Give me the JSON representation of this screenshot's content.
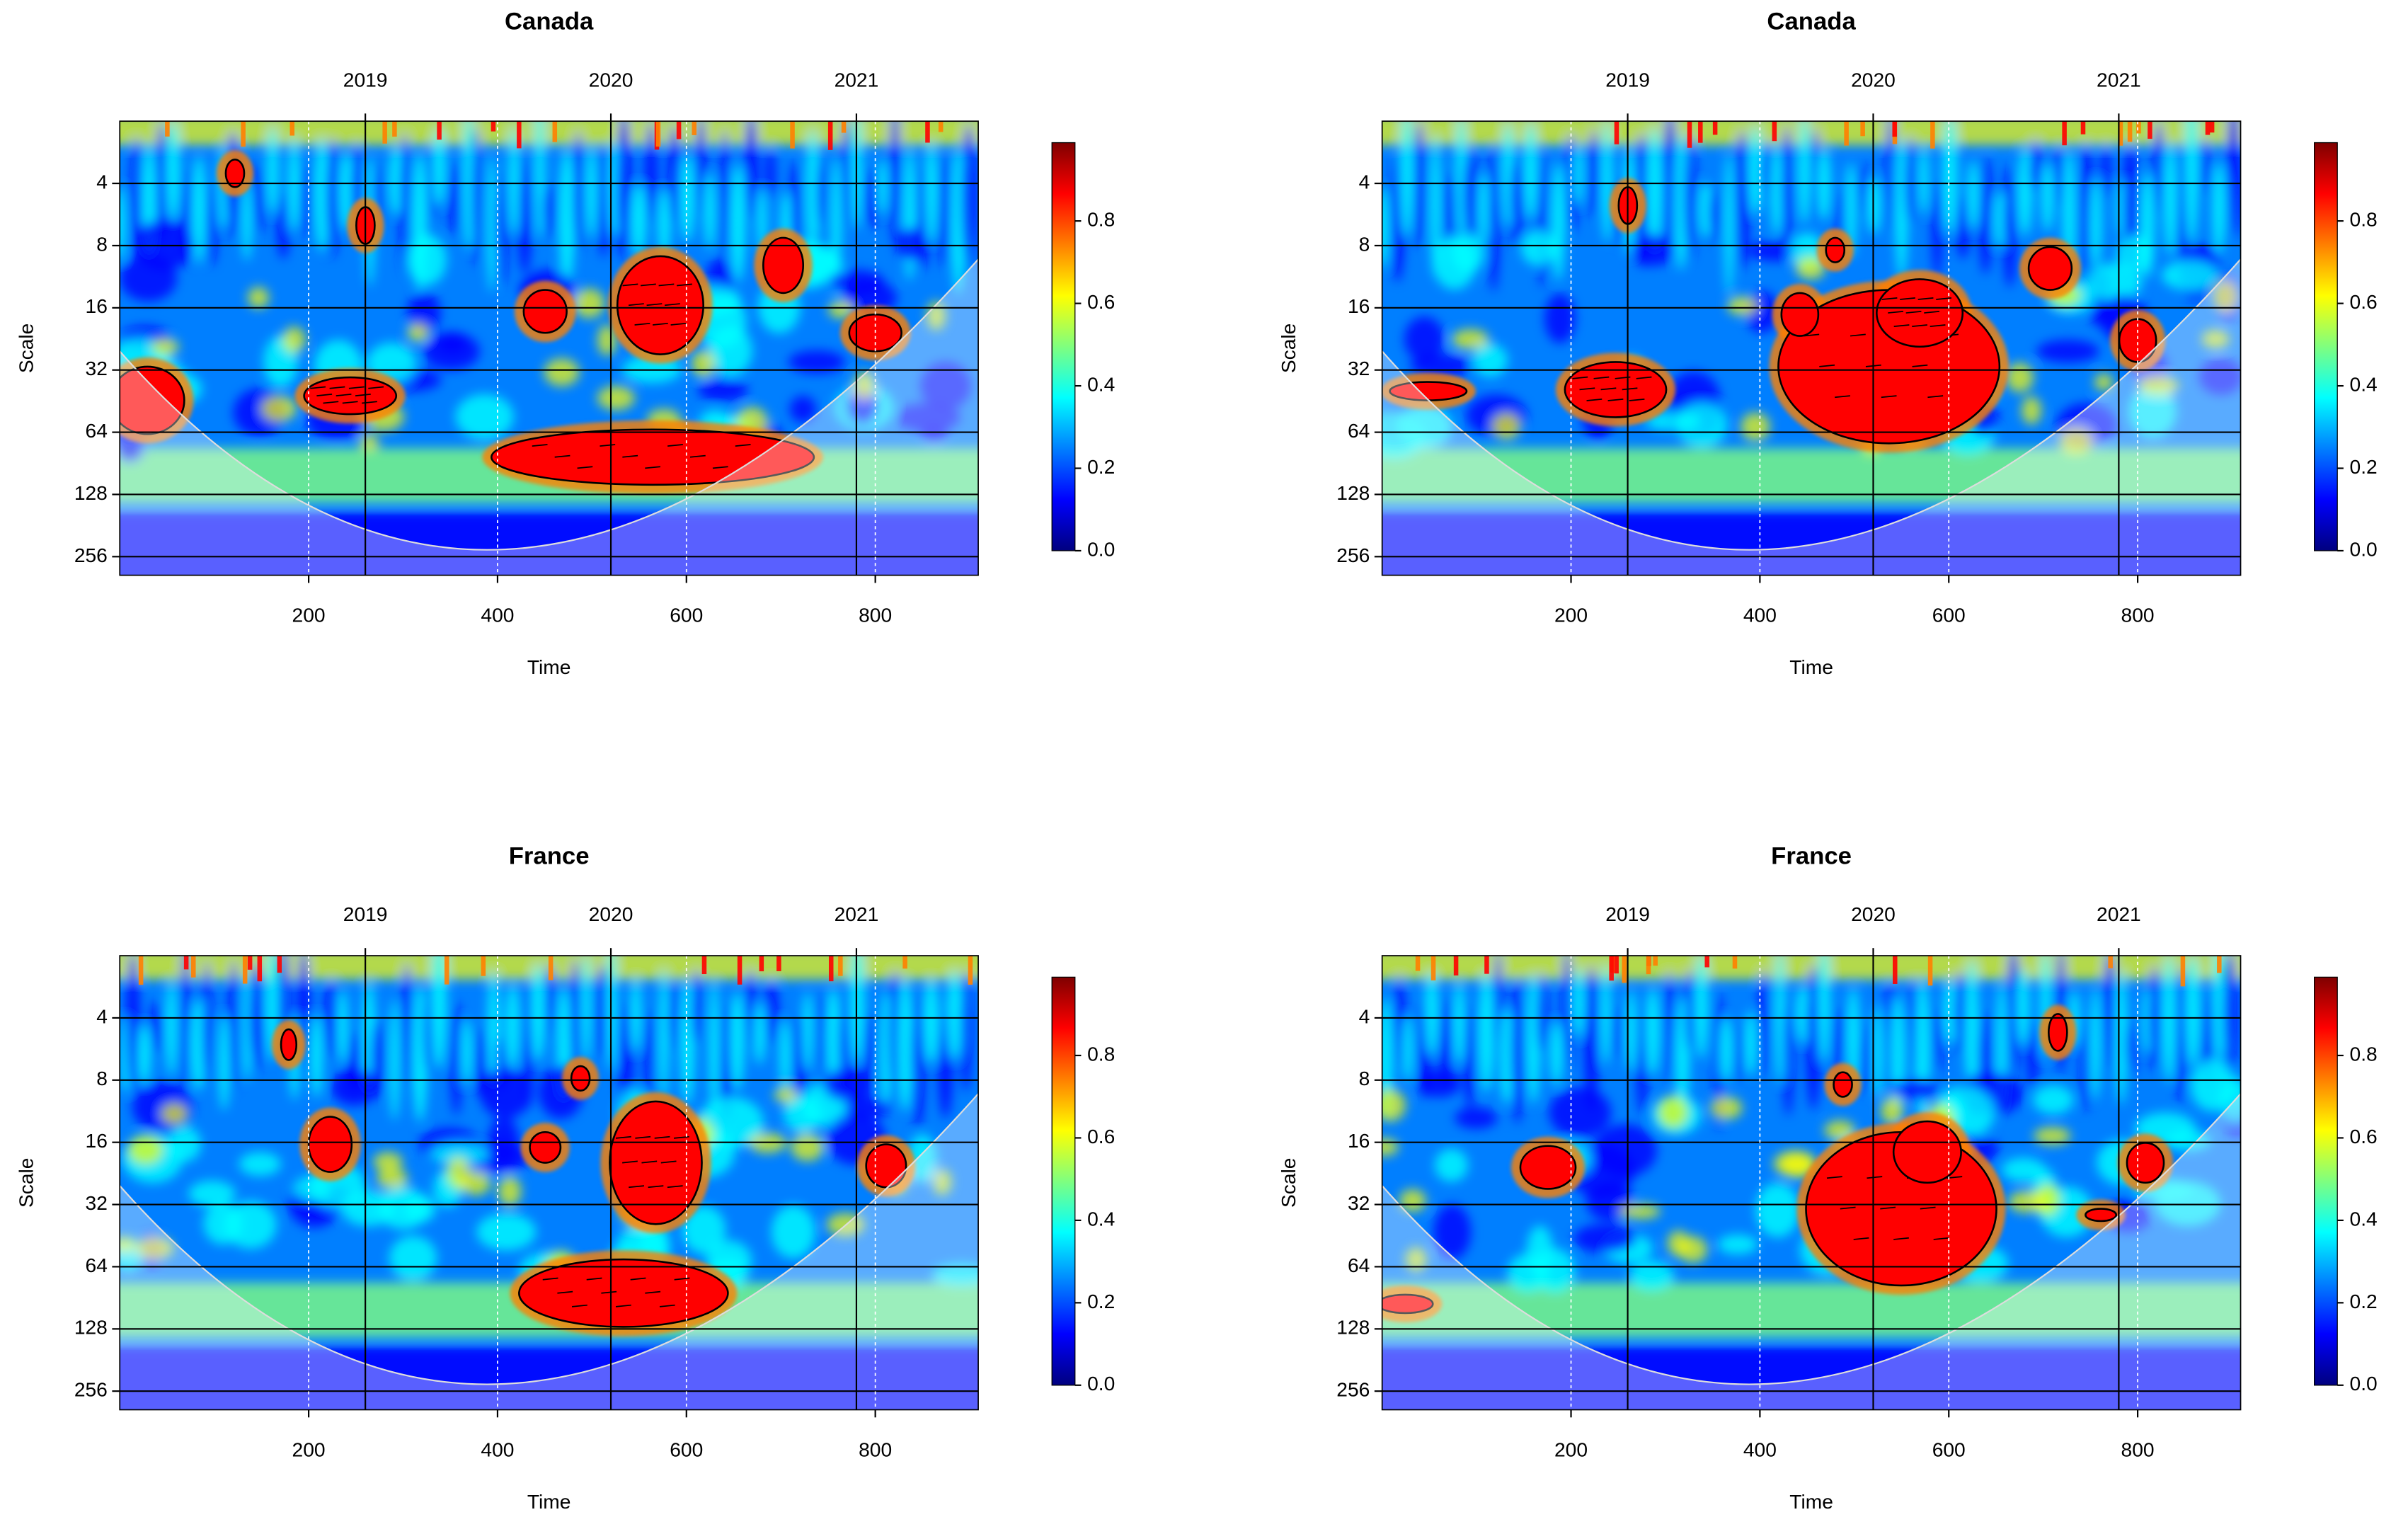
{
  "chart_data": [
    {
      "type": "wavelet",
      "title": "Canada",
      "xlabel": "Time",
      "ylabel": "Scale",
      "xlim": [
        0,
        909
      ],
      "xticks": [
        200,
        400,
        600,
        800
      ],
      "x2ticks": [
        {
          "value": 260,
          "label": "2019"
        },
        {
          "value": 520,
          "label": "2020"
        },
        {
          "value": 780,
          "label": "2021"
        }
      ],
      "ylim": [
        2,
        315
      ],
      "ylog": 2,
      "yticks": [
        4,
        8,
        16,
        32,
        64,
        128,
        256
      ],
      "clim": [
        0,
        0.99
      ],
      "cticks": [
        {
          "value": 0,
          "label": "0.0"
        },
        0.2,
        0.4,
        0.6,
        0.8
      ],
      "colorscale": [
        "#00007f",
        "#0000ff",
        "#007fff",
        "#00ffff",
        "#7fff7f",
        "#ffff00",
        "#ff7f00",
        "#ff0000",
        "#7f0000"
      ],
      "grid": true
    },
    {
      "type": "wavelet",
      "title": "Canada",
      "xlabel": "Time",
      "ylabel": "Scale",
      "xlim": [
        0,
        909
      ],
      "xticks": [
        200,
        400,
        600,
        800
      ],
      "x2ticks": [
        {
          "value": 260,
          "label": "2019"
        },
        {
          "value": 520,
          "label": "2020"
        },
        {
          "value": 780,
          "label": "2021"
        }
      ],
      "ylim": [
        2,
        315
      ],
      "ylog": 2,
      "yticks": [
        4,
        8,
        16,
        32,
        64,
        128,
        256
      ],
      "clim": [
        0,
        0.99
      ],
      "cticks": [
        {
          "value": 0,
          "label": "0.0"
        },
        0.2,
        0.4,
        0.6,
        0.8
      ],
      "colorscale": [
        "#00007f",
        "#0000ff",
        "#007fff",
        "#00ffff",
        "#7fff7f",
        "#ffff00",
        "#ff7f00",
        "#ff0000",
        "#7f0000"
      ],
      "grid": true
    },
    {
      "type": "wavelet",
      "title": "France",
      "xlabel": "Time",
      "ylabel": "Scale",
      "xlim": [
        0,
        909
      ],
      "xticks": [
        200,
        400,
        600,
        800
      ],
      "x2ticks": [
        {
          "value": 260,
          "label": "2019"
        },
        {
          "value": 520,
          "label": "2020"
        },
        {
          "value": 780,
          "label": "2021"
        }
      ],
      "ylim": [
        2,
        315
      ],
      "ylog": 2,
      "yticks": [
        4,
        8,
        16,
        32,
        64,
        128,
        256
      ],
      "clim": [
        0,
        0.99
      ],
      "cticks": [
        {
          "value": 0,
          "label": "0.0"
        },
        0.2,
        0.4,
        0.6,
        0.8
      ],
      "colorscale": [
        "#00007f",
        "#0000ff",
        "#007fff",
        "#00ffff",
        "#7fff7f",
        "#ffff00",
        "#ff7f00",
        "#ff0000",
        "#7f0000"
      ],
      "grid": true
    },
    {
      "type": "wavelet",
      "title": "France",
      "xlabel": "Time",
      "ylabel": "Scale",
      "xlim": [
        0,
        909
      ],
      "xticks": [
        200,
        400,
        600,
        800
      ],
      "x2ticks": [
        {
          "value": 260,
          "label": "2019"
        },
        {
          "value": 520,
          "label": "2020"
        },
        {
          "value": 780,
          "label": "2021"
        }
      ],
      "ylim": [
        2,
        315
      ],
      "ylog": 2,
      "yticks": [
        4,
        8,
        16,
        32,
        64,
        128,
        256
      ],
      "clim": [
        0,
        0.99
      ],
      "cticks": [
        {
          "value": 0,
          "label": "0.0"
        },
        0.2,
        0.4,
        0.6,
        0.8
      ],
      "colorscale": [
        "#00007f",
        "#0000ff",
        "#007fff",
        "#00ffff",
        "#7fff7f",
        "#ffff00",
        "#ff7f00",
        "#ff0000",
        "#7f0000"
      ],
      "grid": true
    }
  ]
}
